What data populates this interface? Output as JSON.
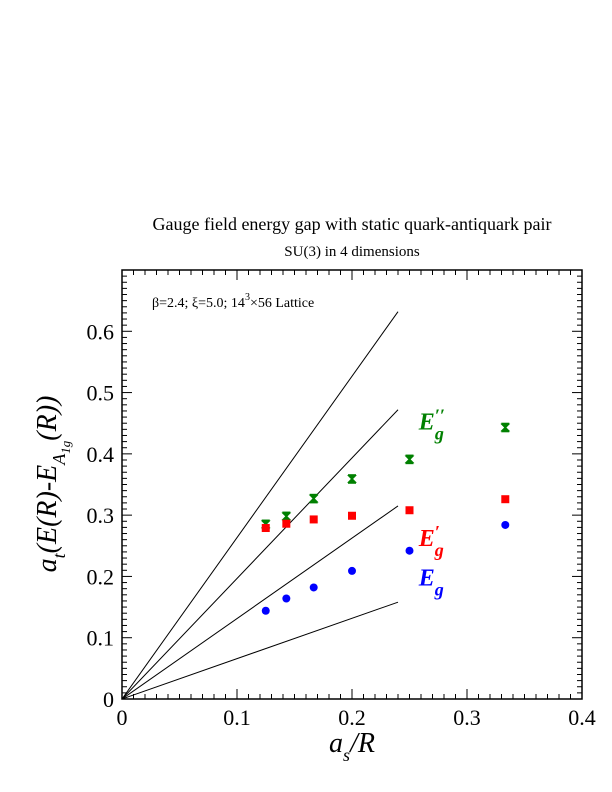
{
  "chart_data": {
    "type": "scatter",
    "title": "Gauge field energy gap with static quark-antiquark pair",
    "subtitle": "SU(3) in 4 dimensions",
    "annotation": "β=2.4;  ξ=5.0;  14³×56 Lattice",
    "xlabel": "a_s/R",
    "ylabel": "a_t(E(R)-E_A1g(R))",
    "xlim": [
      0,
      0.4
    ],
    "ylim": [
      0,
      0.7
    ],
    "x_ticks": [
      "0",
      "0.1",
      "0.2",
      "0.3",
      "0.4"
    ],
    "y_ticks": [
      "0",
      "0.1",
      "0.2",
      "0.3",
      "0.4",
      "0.5",
      "0.6"
    ],
    "grid": false,
    "series": [
      {
        "name": "E''_g",
        "color": "#008000",
        "marker": "star",
        "points": [
          {
            "x": 0.125,
            "y": 0.285
          },
          {
            "x": 0.1429,
            "y": 0.298
          },
          {
            "x": 0.1667,
            "y": 0.327
          },
          {
            "x": 0.2,
            "y": 0.359
          },
          {
            "x": 0.25,
            "y": 0.391
          },
          {
            "x": 0.3333,
            "y": 0.443
          }
        ]
      },
      {
        "name": "E'_g",
        "color": "#ff0000",
        "marker": "square",
        "points": [
          {
            "x": 0.125,
            "y": 0.279
          },
          {
            "x": 0.1429,
            "y": 0.286
          },
          {
            "x": 0.1667,
            "y": 0.293
          },
          {
            "x": 0.2,
            "y": 0.299
          },
          {
            "x": 0.25,
            "y": 0.308
          },
          {
            "x": 0.3333,
            "y": 0.326
          }
        ]
      },
      {
        "name": "E_g",
        "color": "#0000ff",
        "marker": "circle",
        "points": [
          {
            "x": 0.125,
            "y": 0.144
          },
          {
            "x": 0.1429,
            "y": 0.164
          },
          {
            "x": 0.1667,
            "y": 0.182
          },
          {
            "x": 0.2,
            "y": 0.209
          },
          {
            "x": 0.25,
            "y": 0.242
          },
          {
            "x": 0.3333,
            "y": 0.284
          }
        ]
      }
    ],
    "reference_lines": [
      {
        "x_end": 0.24,
        "y_end": 0.632
      },
      {
        "x_end": 0.24,
        "y_end": 0.472
      },
      {
        "x_end": 0.24,
        "y_end": 0.315
      },
      {
        "x_end": 0.24,
        "y_end": 0.158
      }
    ],
    "series_labels": [
      {
        "text": "E''_g",
        "x": 0.258,
        "y": 0.44,
        "color": "#008000"
      },
      {
        "text": "E'_g",
        "x": 0.258,
        "y": 0.25,
        "color": "#ff0000"
      },
      {
        "text": "E_g",
        "x": 0.258,
        "y": 0.185,
        "color": "#0000ff"
      }
    ]
  }
}
